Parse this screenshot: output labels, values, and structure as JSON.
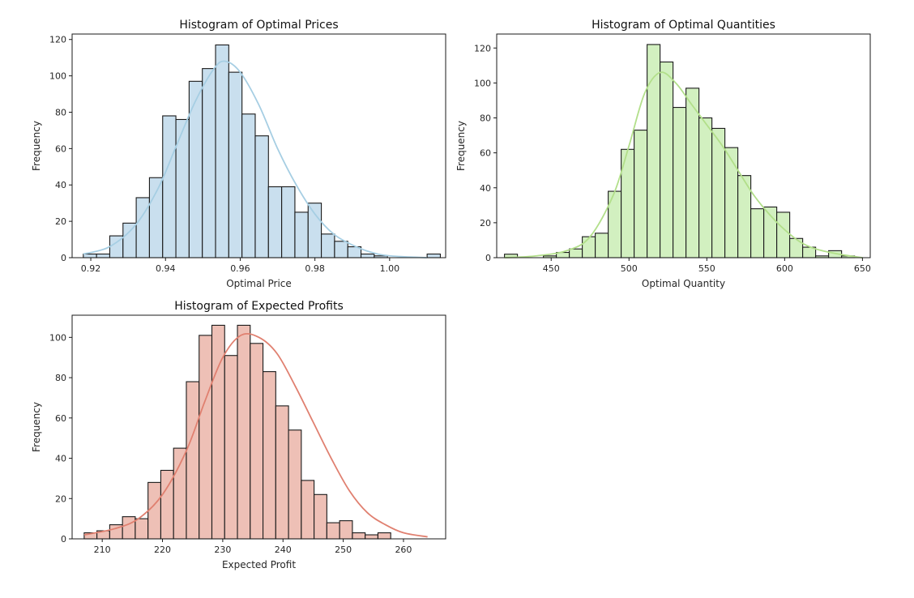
{
  "chart_data": [
    {
      "type": "histogram",
      "title": "Histogram of Optimal Prices",
      "xlabel": "Optimal Price",
      "ylabel": "Frequency",
      "xlim": [
        0.915,
        1.015
      ],
      "ylim": [
        0,
        123
      ],
      "xticks": [
        0.92,
        0.94,
        0.96,
        0.98,
        1.0
      ],
      "xtick_labels": [
        "0.92",
        "0.94",
        "0.96",
        "0.98",
        "1.00"
      ],
      "yticks": [
        0,
        20,
        40,
        60,
        80,
        100,
        120
      ],
      "bin_start": 0.918,
      "bin_width": 0.00354,
      "counts": [
        2,
        2,
        12,
        19,
        33,
        44,
        78,
        76,
        97,
        104,
        117,
        102,
        79,
        67,
        39,
        39,
        25,
        30,
        13,
        9,
        6,
        2,
        1,
        0,
        0,
        0,
        2
      ],
      "color": "#a6cee3",
      "fill_color": "#c9dfee",
      "kde": [
        [
          0.918,
          2
        ],
        [
          0.925,
          6
        ],
        [
          0.932,
          18
        ],
        [
          0.938,
          38
        ],
        [
          0.943,
          62
        ],
        [
          0.948,
          86
        ],
        [
          0.953,
          104
        ],
        [
          0.956,
          108
        ],
        [
          0.96,
          102
        ],
        [
          0.965,
          84
        ],
        [
          0.97,
          60
        ],
        [
          0.975,
          40
        ],
        [
          0.98,
          24
        ],
        [
          0.985,
          13
        ],
        [
          0.99,
          7
        ],
        [
          0.995,
          3
        ],
        [
          1.0,
          1
        ],
        [
          1.01,
          0
        ]
      ]
    },
    {
      "type": "histogram",
      "title": "Histogram of Optimal Quantities",
      "xlabel": "Optimal Quantity",
      "ylabel": "Frequency",
      "xlim": [
        415,
        655
      ],
      "ylim": [
        0,
        128
      ],
      "xticks": [
        450,
        500,
        550,
        600,
        650
      ],
      "xtick_labels": [
        "450",
        "500",
        "550",
        "600",
        "650"
      ],
      "yticks": [
        0,
        20,
        40,
        60,
        80,
        100,
        120
      ],
      "bin_start": 420,
      "bin_width": 8.33,
      "counts": [
        2,
        0,
        0,
        1,
        3,
        5,
        12,
        14,
        38,
        62,
        73,
        122,
        112,
        86,
        97,
        80,
        74,
        63,
        47,
        28,
        29,
        26,
        11,
        6,
        1,
        4,
        1
      ],
      "color": "#b2df8a",
      "fill_color": "#d2f0c0",
      "kde": [
        [
          420,
          0
        ],
        [
          440,
          1
        ],
        [
          460,
          4
        ],
        [
          475,
          12
        ],
        [
          490,
          36
        ],
        [
          500,
          64
        ],
        [
          510,
          94
        ],
        [
          520,
          106
        ],
        [
          530,
          100
        ],
        [
          540,
          88
        ],
        [
          550,
          76
        ],
        [
          560,
          64
        ],
        [
          570,
          50
        ],
        [
          580,
          36
        ],
        [
          590,
          25
        ],
        [
          600,
          16
        ],
        [
          610,
          9
        ],
        [
          620,
          5
        ],
        [
          635,
          2
        ],
        [
          650,
          0
        ]
      ]
    },
    {
      "type": "histogram",
      "title": "Histogram of Expected Profits",
      "xlabel": "Expected Profit",
      "ylabel": "Frequency",
      "xlim": [
        205,
        267
      ],
      "ylim": [
        0,
        111
      ],
      "xticks": [
        210,
        220,
        230,
        240,
        250,
        260
      ],
      "xtick_labels": [
        "210",
        "220",
        "230",
        "240",
        "250",
        "260"
      ],
      "yticks": [
        0,
        20,
        40,
        60,
        80,
        100
      ],
      "bin_start": 207,
      "bin_width": 2.12,
      "counts": [
        3,
        4,
        7,
        11,
        10,
        28,
        34,
        45,
        78,
        101,
        106,
        91,
        106,
        97,
        83,
        66,
        54,
        29,
        22,
        8,
        9,
        3,
        2,
        3
      ],
      "color": "#e08070",
      "fill_color": "#eec0b6",
      "kde": [
        [
          207,
          2
        ],
        [
          212,
          5
        ],
        [
          216,
          10
        ],
        [
          220,
          22
        ],
        [
          224,
          44
        ],
        [
          227,
          68
        ],
        [
          230,
          90
        ],
        [
          233,
          101
        ],
        [
          236,
          100
        ],
        [
          239,
          92
        ],
        [
          242,
          76
        ],
        [
          245,
          58
        ],
        [
          248,
          40
        ],
        [
          251,
          24
        ],
        [
          254,
          13
        ],
        [
          257,
          7
        ],
        [
          260,
          3
        ],
        [
          264,
          1
        ]
      ]
    }
  ]
}
